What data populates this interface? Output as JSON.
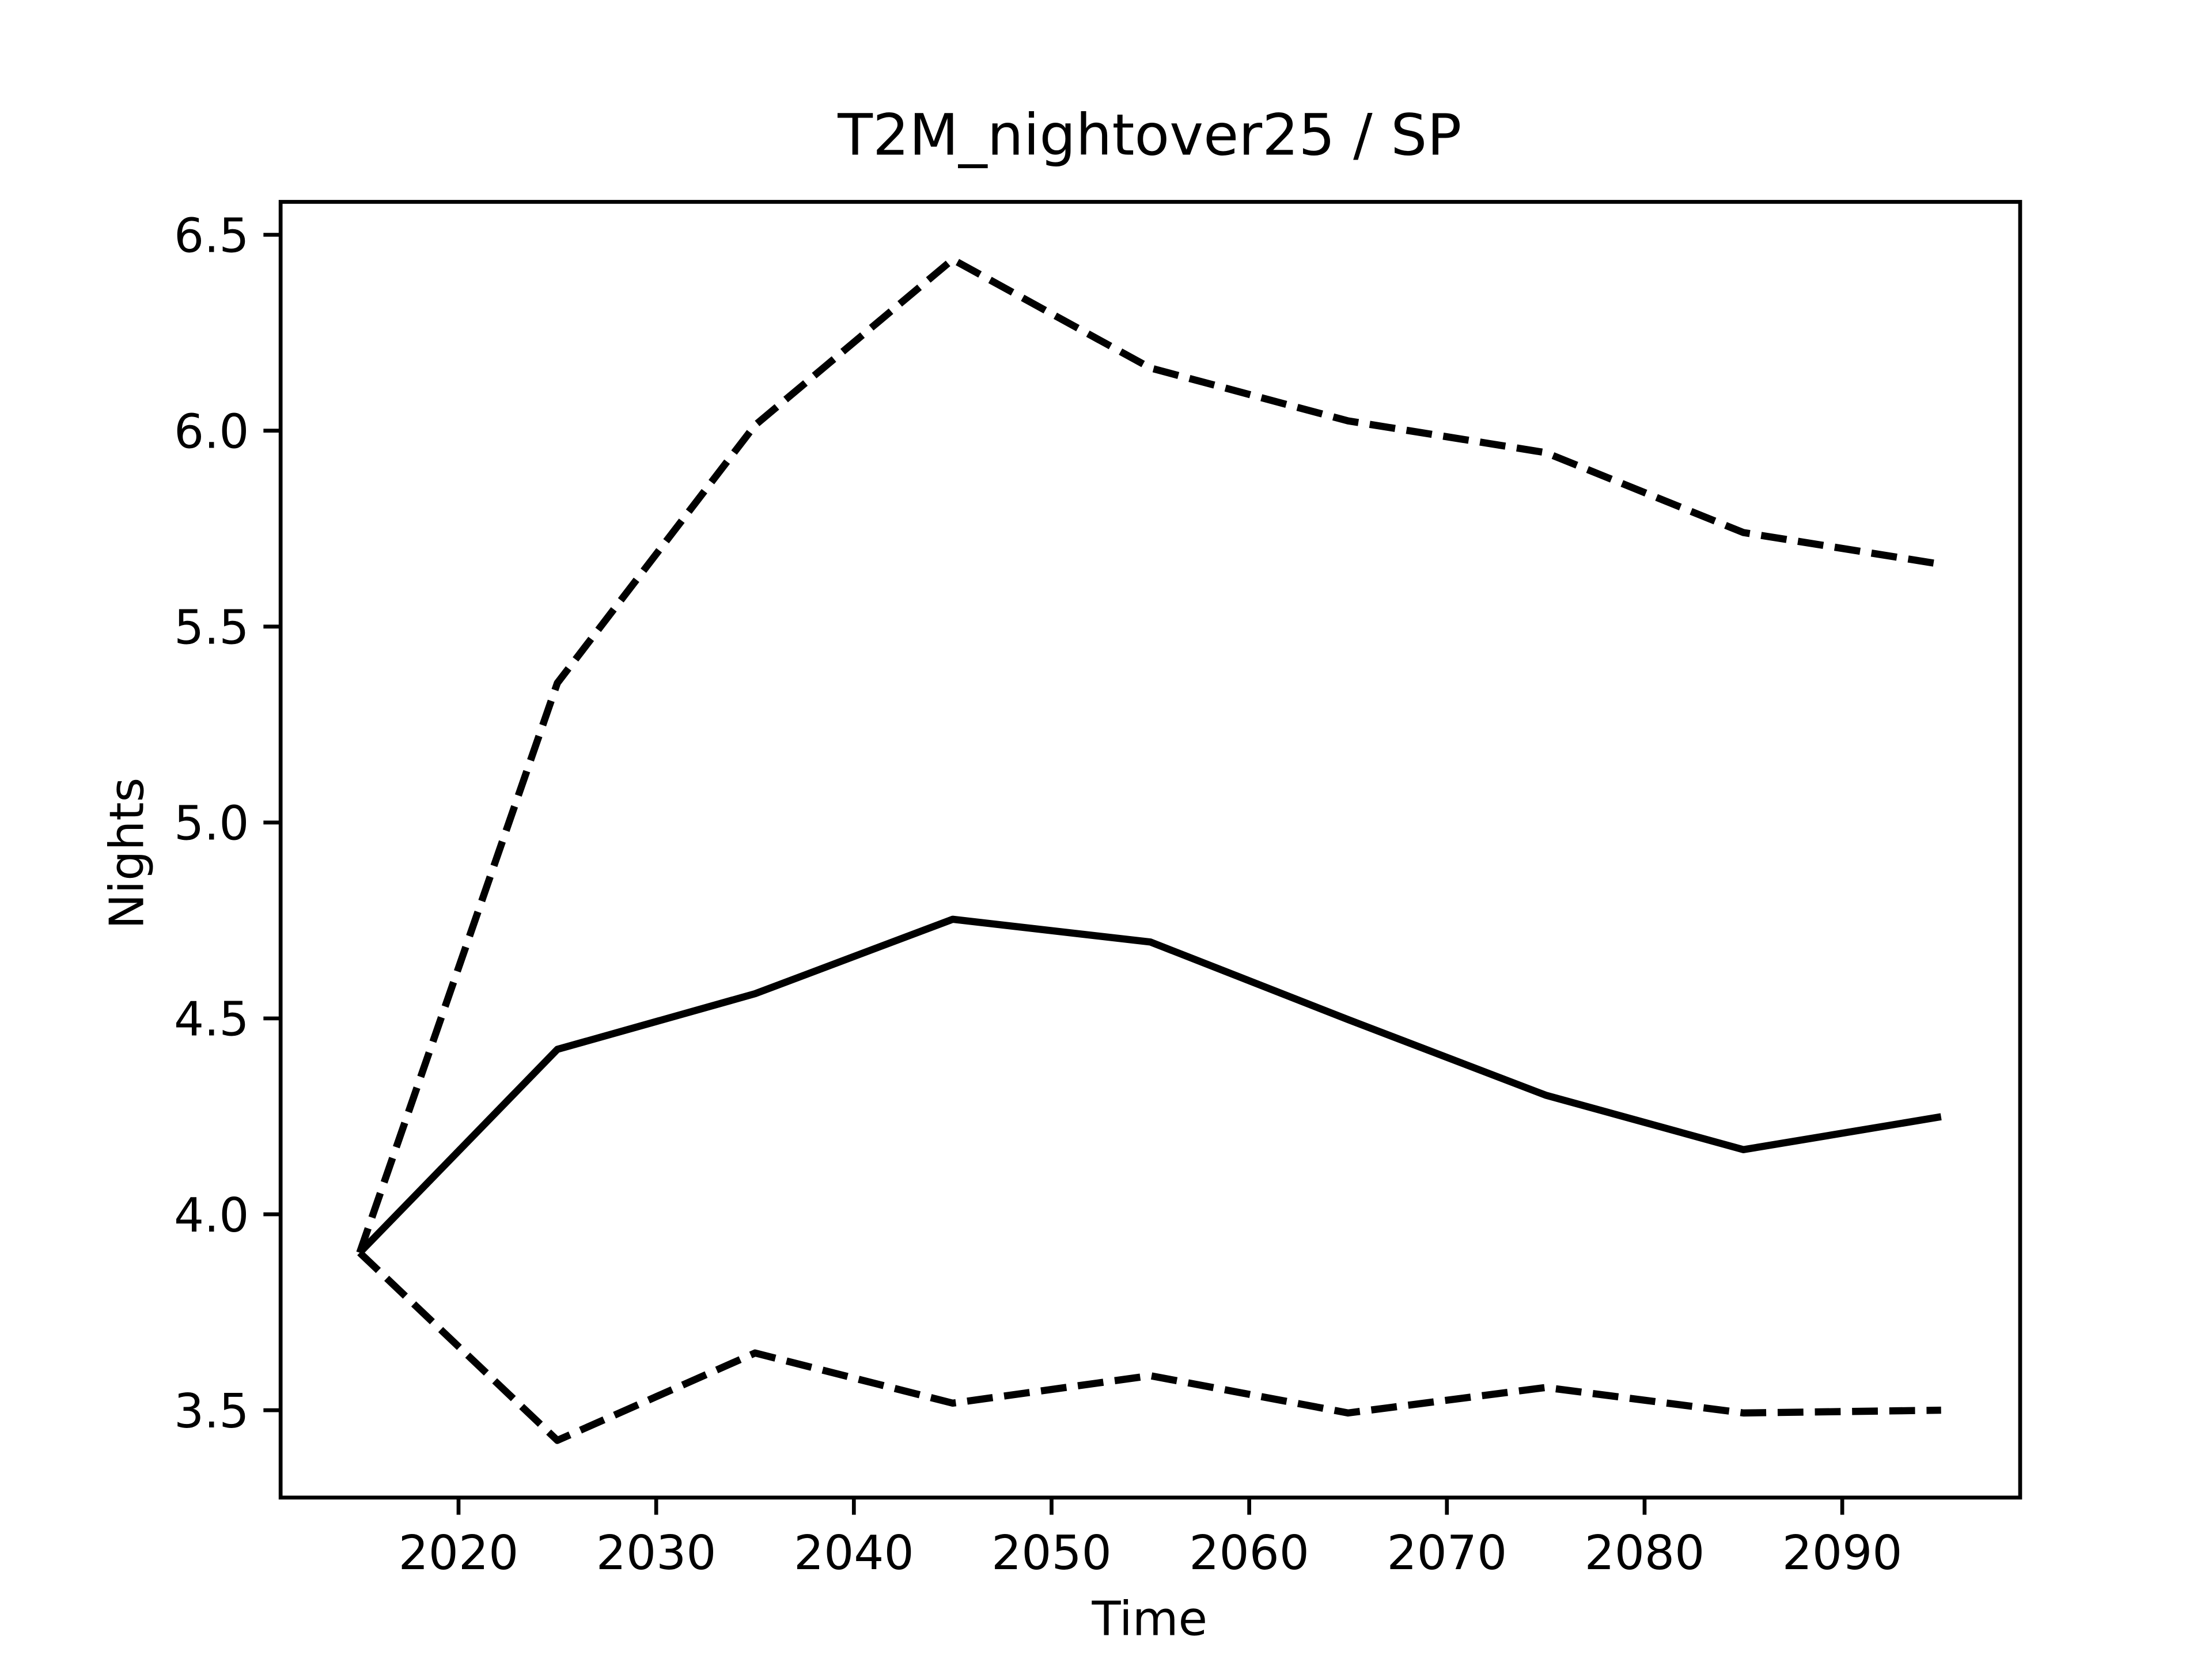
{
  "chart_data": {
    "type": "line",
    "title": "T2M_nightover25 / SP",
    "xlabel": "Time",
    "ylabel": "Nights",
    "x": [
      2015,
      2025,
      2035,
      2045,
      2055,
      2065,
      2075,
      2085,
      2095
    ],
    "series": [
      {
        "color": "#000000",
        "linestyle": "solid",
        "values": [
          3.902,
          4.421,
          4.563,
          4.753,
          4.695,
          4.497,
          4.304,
          4.165,
          4.249
        ]
      },
      {
        "color": "#000000",
        "linestyle": "dashed",
        "values": [
          3.902,
          5.356,
          6.014,
          6.437,
          6.16,
          6.025,
          5.944,
          5.74,
          5.659
        ]
      },
      {
        "color": "#000000",
        "linestyle": "dashed",
        "values": [
          3.902,
          3.423,
          3.646,
          3.518,
          3.588,
          3.493,
          3.558,
          3.493,
          3.5
        ]
      }
    ],
    "xlim": [
      2011,
      2099
    ],
    "ylim": [
      3.277,
      6.584
    ],
    "xticks": [
      2020,
      2030,
      2040,
      2050,
      2060,
      2070,
      2080,
      2090
    ],
    "yticks": [
      3.5,
      {
        "value": 4,
        "label": "4.0"
      },
      4.5,
      {
        "value": 5,
        "label": "5.0"
      },
      5.5,
      {
        "value": 6,
        "label": "6.0"
      },
      6.5
    ],
    "grid": false
  }
}
